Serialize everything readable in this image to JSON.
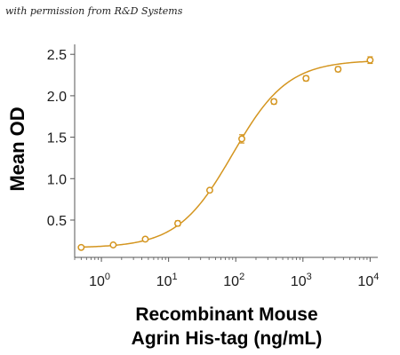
{
  "credit": "with permission from R&D Systems",
  "chart_data": {
    "type": "scatter",
    "title": "",
    "ylabel": "Mean OD",
    "xlabel_lines": [
      "Recombinant Mouse",
      "Agrin His-tag (ng/mL)"
    ],
    "x_scale": "log",
    "xlim": [
      0.4,
      13000
    ],
    "ylim": [
      0.05,
      2.62
    ],
    "y_ticks": [
      0.5,
      1.0,
      1.5,
      2.0,
      2.5
    ],
    "y_tick_labels": [
      "0.5",
      "1.0",
      "1.5",
      "2.0",
      "2.5"
    ],
    "x_ticks": [
      1,
      10,
      100,
      1000,
      10000
    ],
    "x_tick_bases": [
      "10",
      "10",
      "10",
      "10",
      "10"
    ],
    "x_tick_exponents": [
      "0",
      "1",
      "2",
      "3",
      "4"
    ],
    "grid": false,
    "color": "#d4951f",
    "series": [
      {
        "x": [
          0.5,
          1.5,
          4.5,
          13.7,
          41,
          123,
          370,
          1111,
          3333,
          10000
        ],
        "y": [
          0.17,
          0.2,
          0.27,
          0.46,
          0.86,
          1.48,
          1.93,
          2.21,
          2.32,
          2.43
        ],
        "error": [
          0.01,
          0.015,
          0.015,
          0.03,
          0.02,
          0.05,
          0.03,
          0.03,
          0.03,
          0.04
        ]
      }
    ],
    "fit": {
      "bottom": 0.165,
      "top": 2.43,
      "ec50": 90,
      "hill": 1.06
    }
  }
}
